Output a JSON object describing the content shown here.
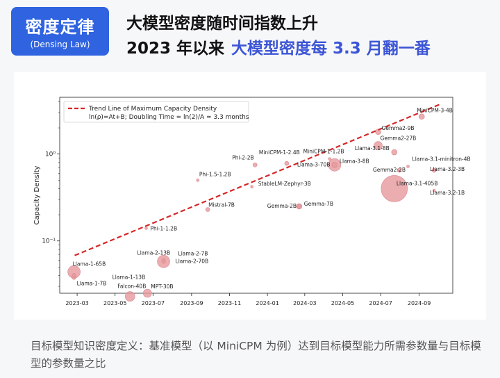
{
  "badge": {
    "title": "密度定律",
    "subtitle": "(Densing Law)"
  },
  "heading": {
    "line1": "大模型密度随时间指数上升",
    "line2_prefix": "2023 年以来",
    "line2_highlight": "大模型密度每 3.3 月翻一番"
  },
  "footer_note": "目标模型知识密度定义：基准模型（以 MiniCPM 为例）达到目标模型能力所需参数量与目标模型的参数量之比",
  "colors": {
    "accent": "#2f63e0",
    "highlight": "#3c55d6",
    "trend": "#d62728",
    "bubble": "#e6989c"
  },
  "chart_data": {
    "type": "scatter",
    "ylabel": "Capacity Density",
    "yscale": "log",
    "ylim": [
      0.025,
      4.5
    ],
    "xlim": [
      "2023-02-01",
      "2024-10-25"
    ],
    "x_ticks": [
      "2023-03",
      "2023-05",
      "2023-07",
      "2023-09",
      "2023-11",
      "2024-01",
      "2024-03",
      "2024-05",
      "2024-07",
      "2024-09"
    ],
    "y_ticks": [
      {
        "value": 0.1,
        "label": "10⁻¹"
      },
      {
        "value": 1,
        "label": "10⁰"
      }
    ],
    "legend": {
      "placement": "top-left",
      "line1": "Trend Line of Maximum Capacity Density",
      "line2": "ln(ρ)=At+B; Doubling Time = ln(2)/A ≈ 3.3 months"
    },
    "trend_line": {
      "from": [
        "2023-02-25",
        0.068
      ],
      "to": [
        "2024-10-07",
        3.8
      ]
    },
    "points": [
      {
        "name": "Llama-1-65B",
        "date": "2023-02-24",
        "y": 0.044,
        "r": 9
      },
      {
        "name": "Llama-1-7B",
        "date": "2023-02-24",
        "y": 0.038,
        "r": 3
      },
      {
        "name": "Llama-1-13B",
        "date": "2023-02-24",
        "y": 0.04,
        "r": 3
      },
      {
        "name": "Falcon-40B",
        "date": "2023-05-25",
        "y": 0.023,
        "r": 7
      },
      {
        "name": "MPT-30B",
        "date": "2023-06-22",
        "y": 0.025,
        "r": 6
      },
      {
        "name": "Llama-2-13B",
        "date": "2023-07-18",
        "y": 0.06,
        "r": 3
      },
      {
        "name": "Llama-2-7B",
        "date": "2023-07-18",
        "y": 0.058,
        "r": 3
      },
      {
        "name": "Llama-2-70B",
        "date": "2023-07-18",
        "y": 0.058,
        "r": 9
      },
      {
        "name": "Phi-1-1.2B",
        "date": "2023-06-20",
        "y": 0.14,
        "r": 2
      },
      {
        "name": "Phi-1.5-1.2B",
        "date": "2023-09-11",
        "y": 0.5,
        "r": 2
      },
      {
        "name": "Mistral-7B",
        "date": "2023-09-27",
        "y": 0.23,
        "r": 3
      },
      {
        "name": "Phi-2-2B",
        "date": "2023-12-12",
        "y": 0.75,
        "r": 3
      },
      {
        "name": "StableLM-Zephyr-3B",
        "date": "2023-12-07",
        "y": 0.42,
        "r": 2
      },
      {
        "name": "MiniCPM-1-2.4B",
        "date": "2024-02-01",
        "y": 0.78,
        "r": 3
      },
      {
        "name": "Gemma-2B",
        "date": "2024-02-21",
        "y": 0.25,
        "r": 4
      },
      {
        "name": "Gemma-7B",
        "date": "2024-02-21",
        "y": 0.25,
        "r": 3
      },
      {
        "name": "Llama-3-70B",
        "date": "2024-04-18",
        "y": 0.75,
        "r": 9
      },
      {
        "name": "Llama-3-8B",
        "date": "2024-04-18",
        "y": 0.75,
        "r": 4
      },
      {
        "name": "MiniCPM-1-1.2B",
        "date": "2024-04-10",
        "y": 0.88,
        "r": 2
      },
      {
        "name": "Gemma2-9B",
        "date": "2024-06-27",
        "y": 1.8,
        "r": 4
      },
      {
        "name": "Gemma2-27B",
        "date": "2024-06-27",
        "y": 1.25,
        "r": 6
      },
      {
        "name": "Llama-3.1-8B",
        "date": "2024-07-23",
        "y": 1.05,
        "r": 4
      },
      {
        "name": "Gemma2-2B",
        "date": "2024-07-31",
        "y": 0.65,
        "r": 3
      },
      {
        "name": "Llama-3.1-405B",
        "date": "2024-07-23",
        "y": 0.4,
        "r": 19
      },
      {
        "name": "Llama-3.1-minitron-4B",
        "date": "2024-08-14",
        "y": 0.72,
        "r": 2
      },
      {
        "name": "Llama-3.2-3B",
        "date": "2024-09-25",
        "y": 0.65,
        "r": 3
      },
      {
        "name": "Llama-3.2-1B",
        "date": "2024-09-25",
        "y": 0.38,
        "r": 2
      },
      {
        "name": "MiniCPM-3-4B",
        "date": "2024-09-05",
        "y": 2.7,
        "r": 4
      }
    ]
  }
}
